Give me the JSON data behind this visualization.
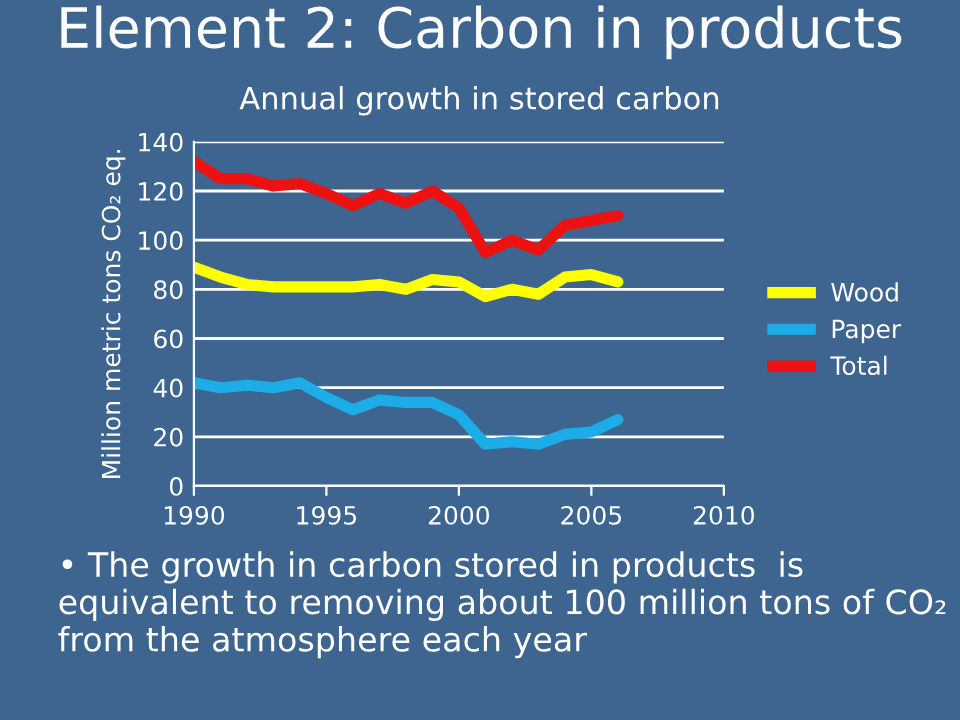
{
  "chart_data": {
    "type": "line",
    "title": "Element 2: Carbon in products",
    "subtitle": "Annual growth in stored carbon",
    "ylabel": "Million metric tons CO₂ eq.",
    "x": [
      1990,
      1991,
      1992,
      1993,
      1994,
      1995,
      1996,
      1997,
      1998,
      1999,
      2000,
      2001,
      2002,
      2003,
      2004,
      2005,
      2006
    ],
    "series": [
      {
        "name": "Wood",
        "color": "#ffff00",
        "values": [
          89,
          85,
          82,
          81,
          81,
          81,
          81,
          82,
          80,
          84,
          83,
          77,
          80,
          78,
          85,
          86,
          83
        ]
      },
      {
        "name": "Paper",
        "color": "#1cace8",
        "values": [
          42,
          40,
          41,
          40,
          42,
          36,
          31,
          35,
          34,
          34,
          29,
          17,
          18,
          17,
          21,
          22,
          27
        ]
      },
      {
        "name": "Total",
        "color": "#ee1111",
        "values": [
          132,
          125,
          125,
          122,
          123,
          119,
          114,
          119,
          115,
          120,
          113,
          95,
          100,
          96,
          106,
          108,
          110
        ]
      }
    ],
    "xlim": [
      1990,
      2010
    ],
    "xticks": [
      1990,
      1995,
      2000,
      2005,
      2010
    ],
    "ylim": [
      0,
      140
    ],
    "yticks": [
      0,
      20,
      40,
      60,
      80,
      100,
      120,
      140
    ],
    "grid": "y",
    "legend": "right",
    "marker": "none",
    "line_style": "solid",
    "annotations": [
      "• The growth in carbon stored in products  is equivalent to removing about 100 million tons of CO₂ from the atmosphere each year"
    ]
  }
}
